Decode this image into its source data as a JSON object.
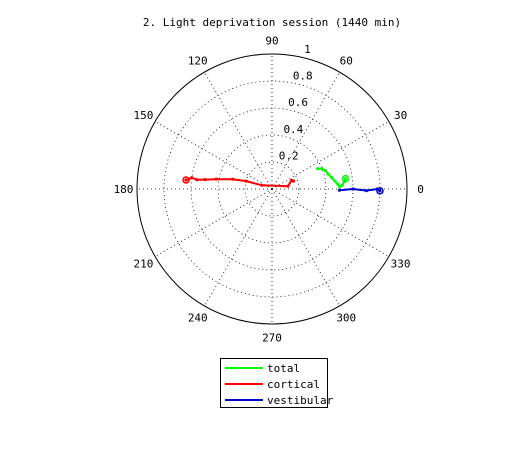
{
  "chart_data": {
    "type": "polar",
    "title": "2. Light deprivation session (1440 min)",
    "radial_ticks": [
      "0.2",
      "0.4",
      "0.6",
      "0.8",
      "1"
    ],
    "radial_values": [
      0.2,
      0.4,
      0.6,
      0.8,
      1.0
    ],
    "rlim": [
      0,
      1
    ],
    "angle_ticks": [
      0,
      30,
      60,
      90,
      120,
      150,
      180,
      210,
      240,
      270,
      300,
      330
    ],
    "angle_tick_labels": [
      "0",
      "30",
      "60",
      "90",
      "120",
      "150",
      "180",
      "210",
      "240",
      "270",
      "300",
      "330"
    ],
    "grid": true,
    "legend_position": "bottom",
    "series": [
      {
        "name": "total",
        "color": "#00ff00",
        "points": [
          {
            "theta": 24,
            "r": 0.37
          },
          {
            "theta": 22,
            "r": 0.4
          },
          {
            "theta": 19,
            "r": 0.42
          },
          {
            "theta": 15,
            "r": 0.43
          },
          {
            "theta": 11,
            "r": 0.45
          },
          {
            "theta": 7,
            "r": 0.47
          },
          {
            "theta": 4,
            "r": 0.49
          },
          {
            "theta": 2,
            "r": 0.5
          },
          {
            "theta": 3,
            "r": 0.52
          },
          {
            "theta": 6,
            "r": 0.54
          },
          {
            "theta": 8,
            "r": 0.55
          }
        ]
      },
      {
        "name": "cortical",
        "color": "#ff0000",
        "points": [
          {
            "theta": 20,
            "r": 0.17
          },
          {
            "theta": 24,
            "r": 0.16
          },
          {
            "theta": 10,
            "r": 0.12
          },
          {
            "theta": 160,
            "r": 0.08
          },
          {
            "theta": 163,
            "r": 0.2
          },
          {
            "theta": 166,
            "r": 0.3
          },
          {
            "theta": 170,
            "r": 0.42
          },
          {
            "theta": 172,
            "r": 0.5
          },
          {
            "theta": 173,
            "r": 0.56
          },
          {
            "theta": 172,
            "r": 0.6
          },
          {
            "theta": 174,
            "r": 0.64
          }
        ]
      },
      {
        "name": "vestibular",
        "color": "#0000cc",
        "points": [
          {
            "theta": 359,
            "r": 0.5
          },
          {
            "theta": 0,
            "r": 0.6
          },
          {
            "theta": 359,
            "r": 0.7
          },
          {
            "theta": 0,
            "r": 0.78
          },
          {
            "theta": 359,
            "r": 0.8
          }
        ]
      }
    ]
  }
}
